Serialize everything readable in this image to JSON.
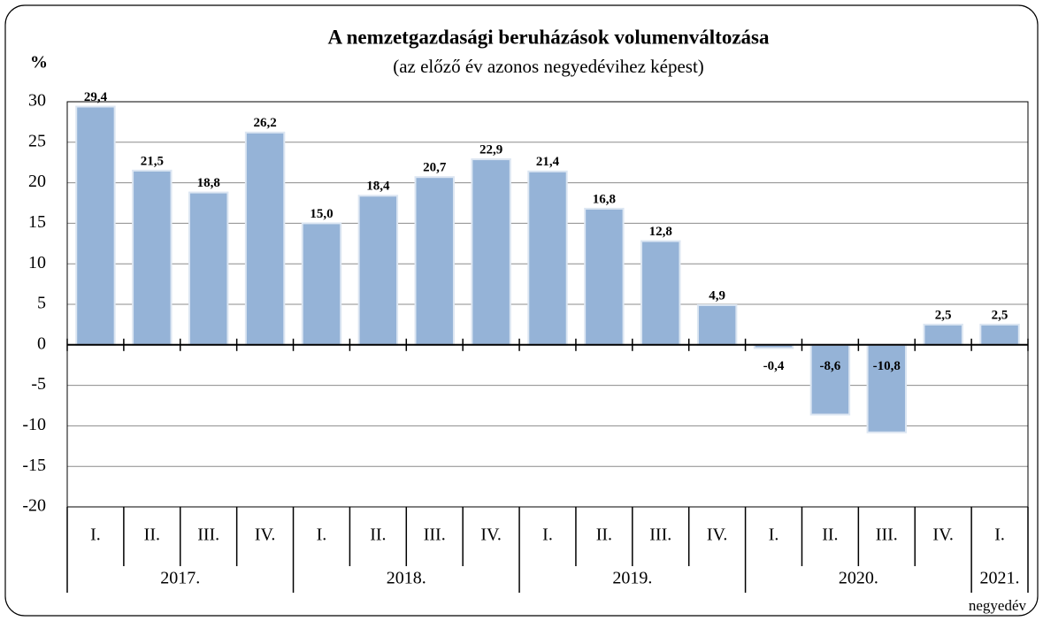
{
  "chart_data": {
    "type": "bar",
    "title": "A nemzetgazdasági beruházások volumenváltozása",
    "subtitle": "(az előző év azonos negyedévihez képest)",
    "y_label": "%",
    "x_label": "negyedév",
    "color": "#95b3d7",
    "grid": true,
    "ylim": [
      -20,
      30
    ],
    "yticks": [
      30,
      25,
      20,
      15,
      10,
      5,
      0,
      -5,
      -10,
      -15,
      -20
    ],
    "groups": [
      {
        "label": "2017.",
        "categories": [
          "I.",
          "II.",
          "III.",
          "IV."
        ],
        "values": [
          29.4,
          21.5,
          18.8,
          26.2
        ],
        "value_labels": [
          "29,4",
          "21,5",
          "18,8",
          "26,2"
        ]
      },
      {
        "label": "2018.",
        "categories": [
          "I.",
          "II.",
          "III.",
          "IV."
        ],
        "values": [
          15.0,
          18.4,
          20.7,
          22.9
        ],
        "value_labels": [
          "15,0",
          "18,4",
          "20,7",
          "22,9"
        ]
      },
      {
        "label": "2019.",
        "categories": [
          "I.",
          "II.",
          "III.",
          "IV."
        ],
        "values": [
          21.4,
          16.8,
          12.8,
          4.9
        ],
        "value_labels": [
          "21,4",
          "16,8",
          "12,8",
          "4,9"
        ]
      },
      {
        "label": "2020.",
        "categories": [
          "I.",
          "II.",
          "III.",
          "IV."
        ],
        "values": [
          -0.4,
          -8.6,
          -10.8,
          2.5
        ],
        "value_labels": [
          "-0,4",
          "-8,6",
          "-10,8",
          "2,5"
        ]
      },
      {
        "label": "2021.",
        "categories": [
          "I."
        ],
        "values": [
          2.5
        ],
        "value_labels": [
          "2,5"
        ]
      }
    ]
  }
}
